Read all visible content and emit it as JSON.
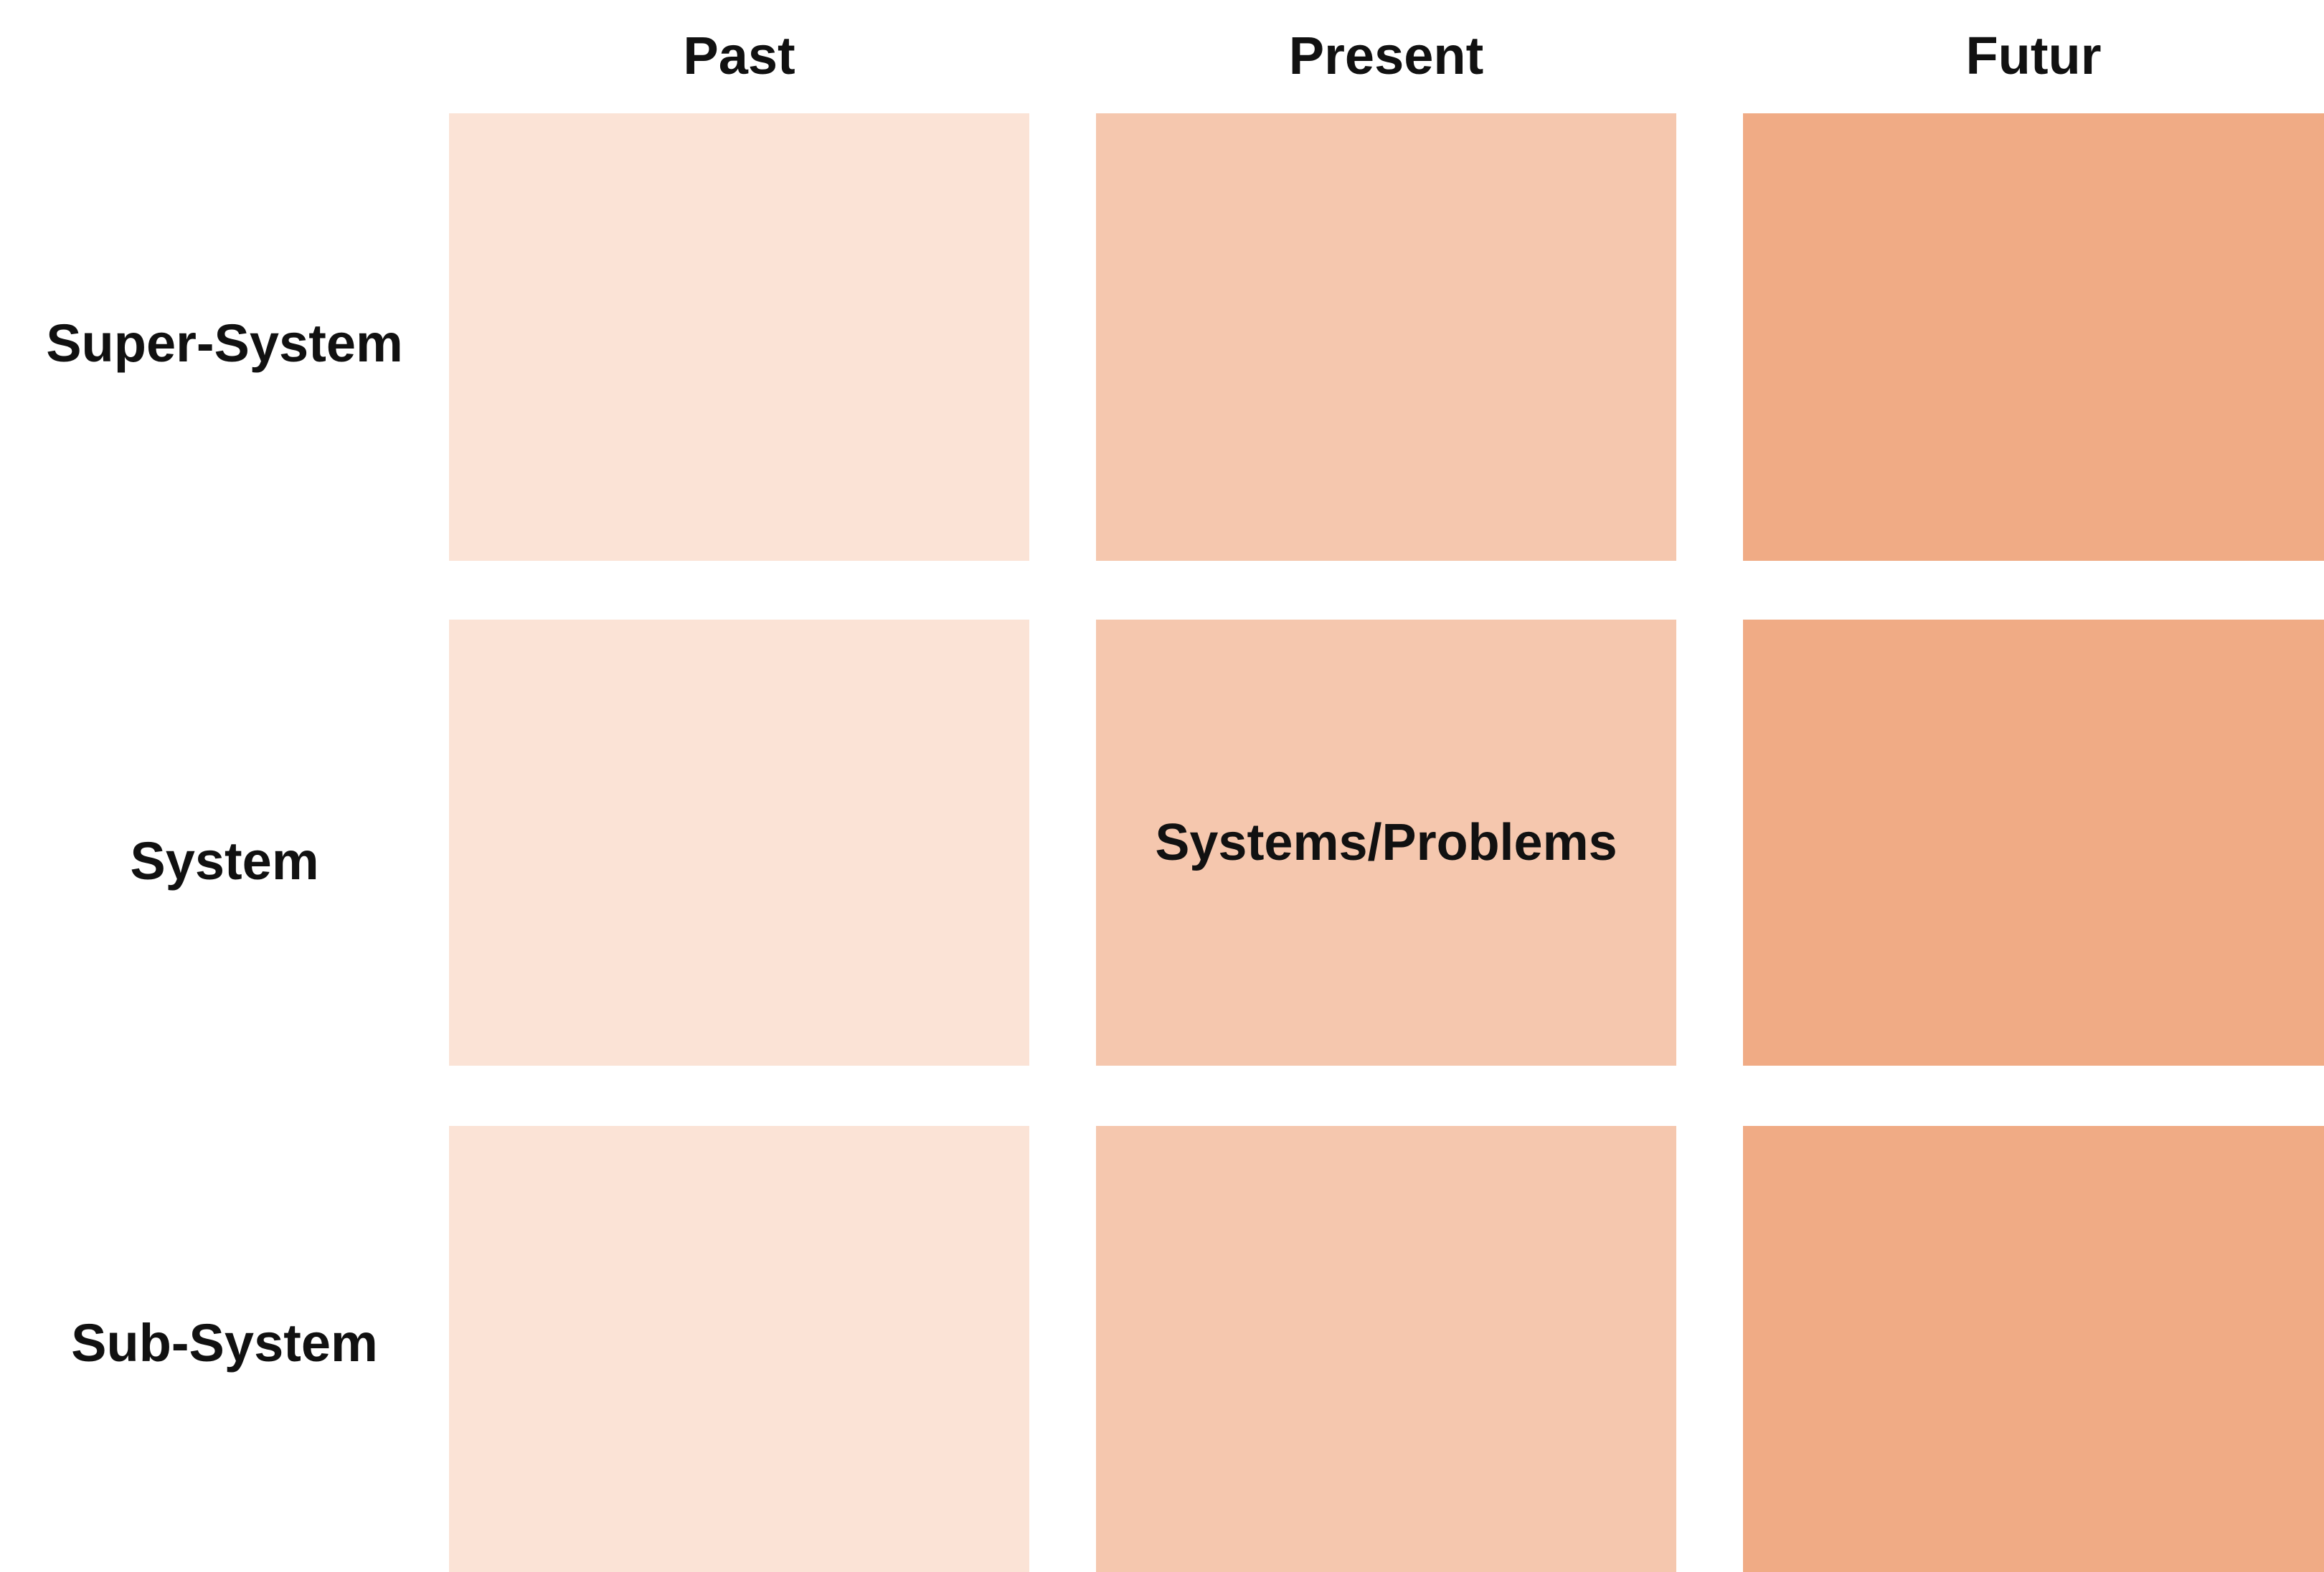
{
  "diagram": {
    "columns": [
      "Past",
      "Present",
      "Futur"
    ],
    "rows": [
      "Super-System",
      "System",
      "Sub-System"
    ],
    "column_colors": [
      "#FBE3D6",
      "#F5C7AE",
      "#F0AB85"
    ],
    "cells": [
      [
        "",
        "",
        ""
      ],
      [
        "",
        "Systems/Problems",
        ""
      ],
      [
        "",
        "",
        ""
      ]
    ]
  }
}
